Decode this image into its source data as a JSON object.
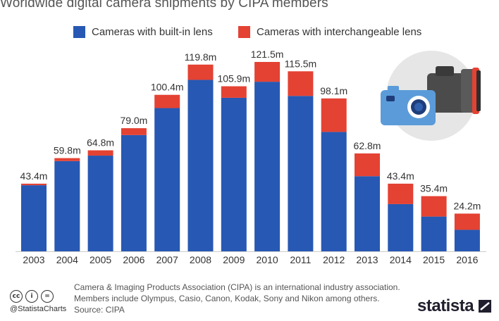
{
  "title": "Worldwide digital camera shipments by CIPA members",
  "legend": [
    {
      "label": "Cameras with built-in lens",
      "color": "#2758b3"
    },
    {
      "label": "Cameras with interchangeable lens",
      "color": "#e44233"
    }
  ],
  "chart_data": {
    "type": "bar",
    "stacked": true,
    "categories": [
      "2003",
      "2004",
      "2005",
      "2006",
      "2007",
      "2008",
      "2009",
      "2010",
      "2011",
      "2012",
      "2013",
      "2014",
      "2015",
      "2016"
    ],
    "series": [
      {
        "name": "Cameras with built-in lens",
        "color": "#2758b3",
        "values": [
          42.4,
          57.9,
          61.4,
          74.6,
          91.9,
          110.0,
          98.5,
          108.8,
          99.7,
          76.6,
          48.2,
          30.3,
          22.3,
          13.8
        ]
      },
      {
        "name": "Cameras with interchangeable lens",
        "color": "#e44233",
        "values": [
          1.0,
          1.9,
          3.4,
          4.4,
          8.5,
          9.8,
          7.4,
          12.7,
          15.8,
          21.5,
          14.6,
          13.1,
          13.1,
          10.4
        ]
      }
    ],
    "totals": [
      "43.4m",
      "59.8m",
      "64.8m",
      "79.0m",
      "100.4m",
      "119.8m",
      "105.9m",
      "121.5m",
      "115.5m",
      "98.1m",
      "62.8m",
      "43.4m",
      "35.4m",
      "24.2m"
    ],
    "ylim": [
      0,
      130
    ],
    "grid": false,
    "legend_position": "top"
  },
  "footer": {
    "note_line1": "Camera & Imaging Products Association (CIPA) is an international industry association.",
    "note_line2": "Members include Olympus, Casio, Canon, Kodak, Sony and Nikon among others.",
    "source": "Source: CIPA",
    "handle": "@StatistaCharts",
    "brand": "statista"
  },
  "icons": {
    "cc": "cc-icon",
    "attribution": "attribution-icon",
    "no-derivatives": "no-derivatives-icon",
    "illustration": "camera-illustration"
  }
}
